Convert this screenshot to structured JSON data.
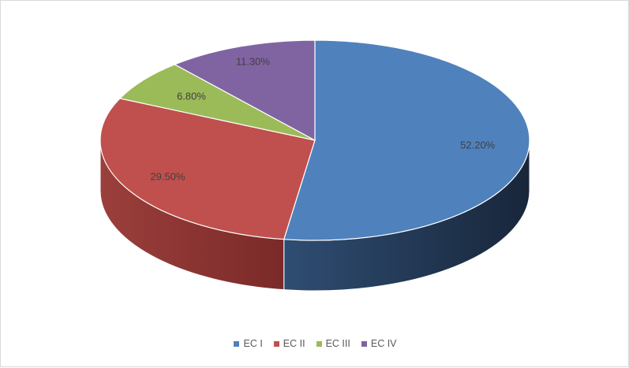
{
  "chart_data": {
    "type": "pie",
    "style": "3d",
    "categories": [
      "EC I",
      "EC II",
      "EC III",
      "EC IV"
    ],
    "values": [
      52.2,
      29.5,
      6.8,
      11.3
    ],
    "labels": [
      "52.20%",
      "29.50%",
      "6.80%",
      "11.30%"
    ],
    "colors": [
      "#4F81BD",
      "#C0504D",
      "#9BBB59",
      "#8064A2"
    ],
    "title": "",
    "legend_position": "bottom"
  }
}
